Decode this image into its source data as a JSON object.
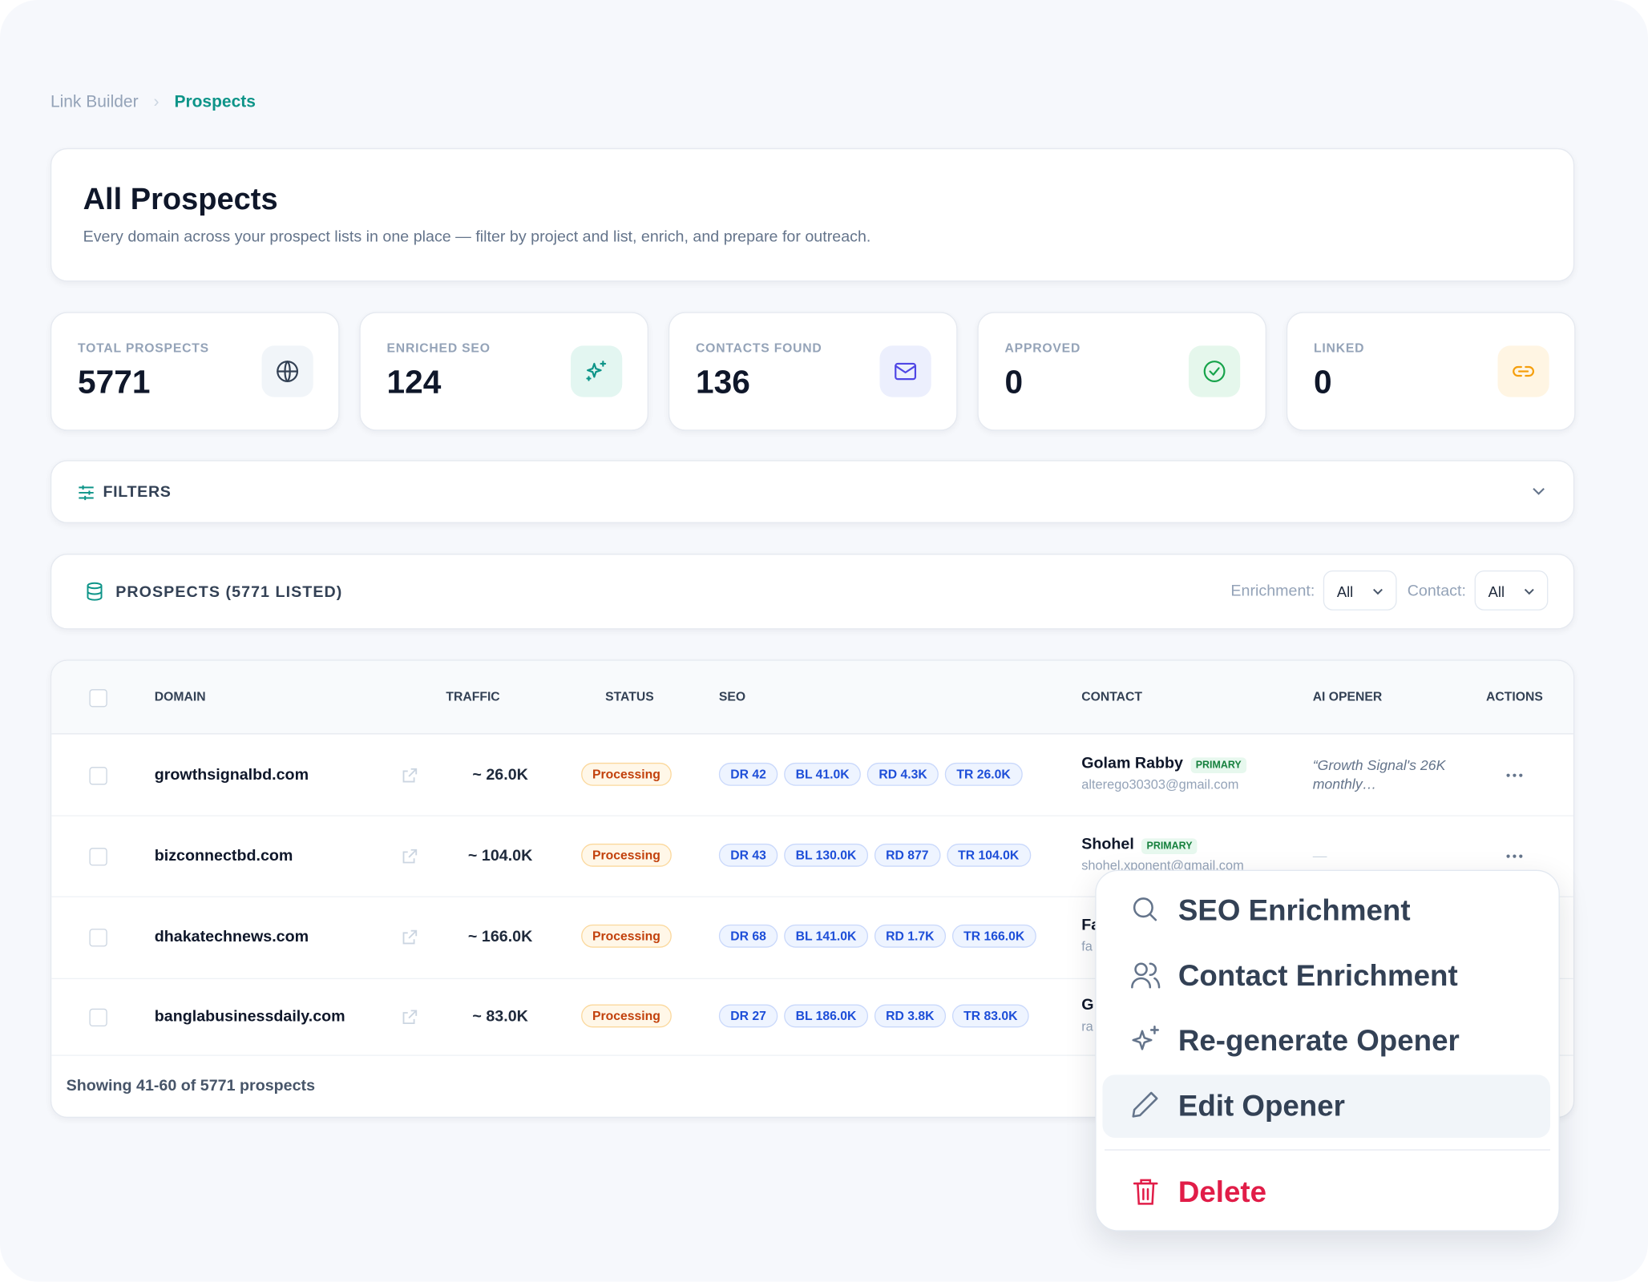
{
  "breadcrumb": [
    "Link Builder",
    "Prospects"
  ],
  "header": {
    "title": "All Prospects",
    "subtitle": "Every domain across your prospect lists in one place — filter by project and list, enrich, and prepare for outreach."
  },
  "stats": [
    {
      "label": "TOTAL PROSPECTS",
      "value": "5771"
    },
    {
      "label": "ENRICHED SEO",
      "value": "124"
    },
    {
      "label": "CONTACTS FOUND",
      "value": "136"
    },
    {
      "label": "APPROVED",
      "value": "0"
    },
    {
      "label": "LINKED",
      "value": "0"
    }
  ],
  "filters": {
    "label": "FILTERS"
  },
  "prospects_bar": {
    "title": "PROSPECTS (5771 LISTED)",
    "enrichment_label": "Enrichment:",
    "enrichment_value": "All",
    "contact_label": "Contact:",
    "contact_value": "All"
  },
  "table": {
    "columns": [
      "DOMAIN",
      "TRAFFIC",
      "STATUS",
      "SEO",
      "CONTACT",
      "AI OPENER",
      "ACTIONS"
    ],
    "rows": [
      {
        "domain": "growthsignalbd.com",
        "traffic": "~ 26.0K",
        "status": "Processing",
        "seo": [
          "DR 42",
          "BL 41.0K",
          "RD 4.3K",
          "TR 26.0K"
        ],
        "contact_name": "Golam Rabby",
        "contact_badge": "PRIMARY",
        "contact_email": "alterego30303@gmail.com",
        "opener": "“Growth Signal's 26K monthly…"
      },
      {
        "domain": "bizconnectbd.com",
        "traffic": "~ 104.0K",
        "status": "Processing",
        "seo": [
          "DR 43",
          "BL 130.0K",
          "RD 877",
          "TR 104.0K"
        ],
        "contact_name": "Shohel",
        "contact_badge": "PRIMARY",
        "contact_email": "shohel.xponent@gmail.com",
        "opener": "—"
      },
      {
        "domain": "dhakatechnews.com",
        "traffic": "~ 166.0K",
        "status": "Processing",
        "seo": [
          "DR 68",
          "BL 141.0K",
          "RD 1.7K",
          "TR 166.0K"
        ],
        "contact_name": "Fa",
        "contact_email": "fa"
      },
      {
        "domain": "banglabusinessdaily.com",
        "traffic": "~ 83.0K",
        "status": "Processing",
        "seo": [
          "DR 27",
          "BL 186.0K",
          "RD 3.8K",
          "TR 83.0K"
        ],
        "contact_name": "G",
        "contact_email": "ra"
      }
    ],
    "footer": "Showing 41-60 of 5771 prospects"
  },
  "menu": {
    "items": [
      "SEO Enrichment",
      "Contact Enrichment",
      "Re-generate Opener",
      "Edit Opener"
    ],
    "danger": "Delete"
  }
}
